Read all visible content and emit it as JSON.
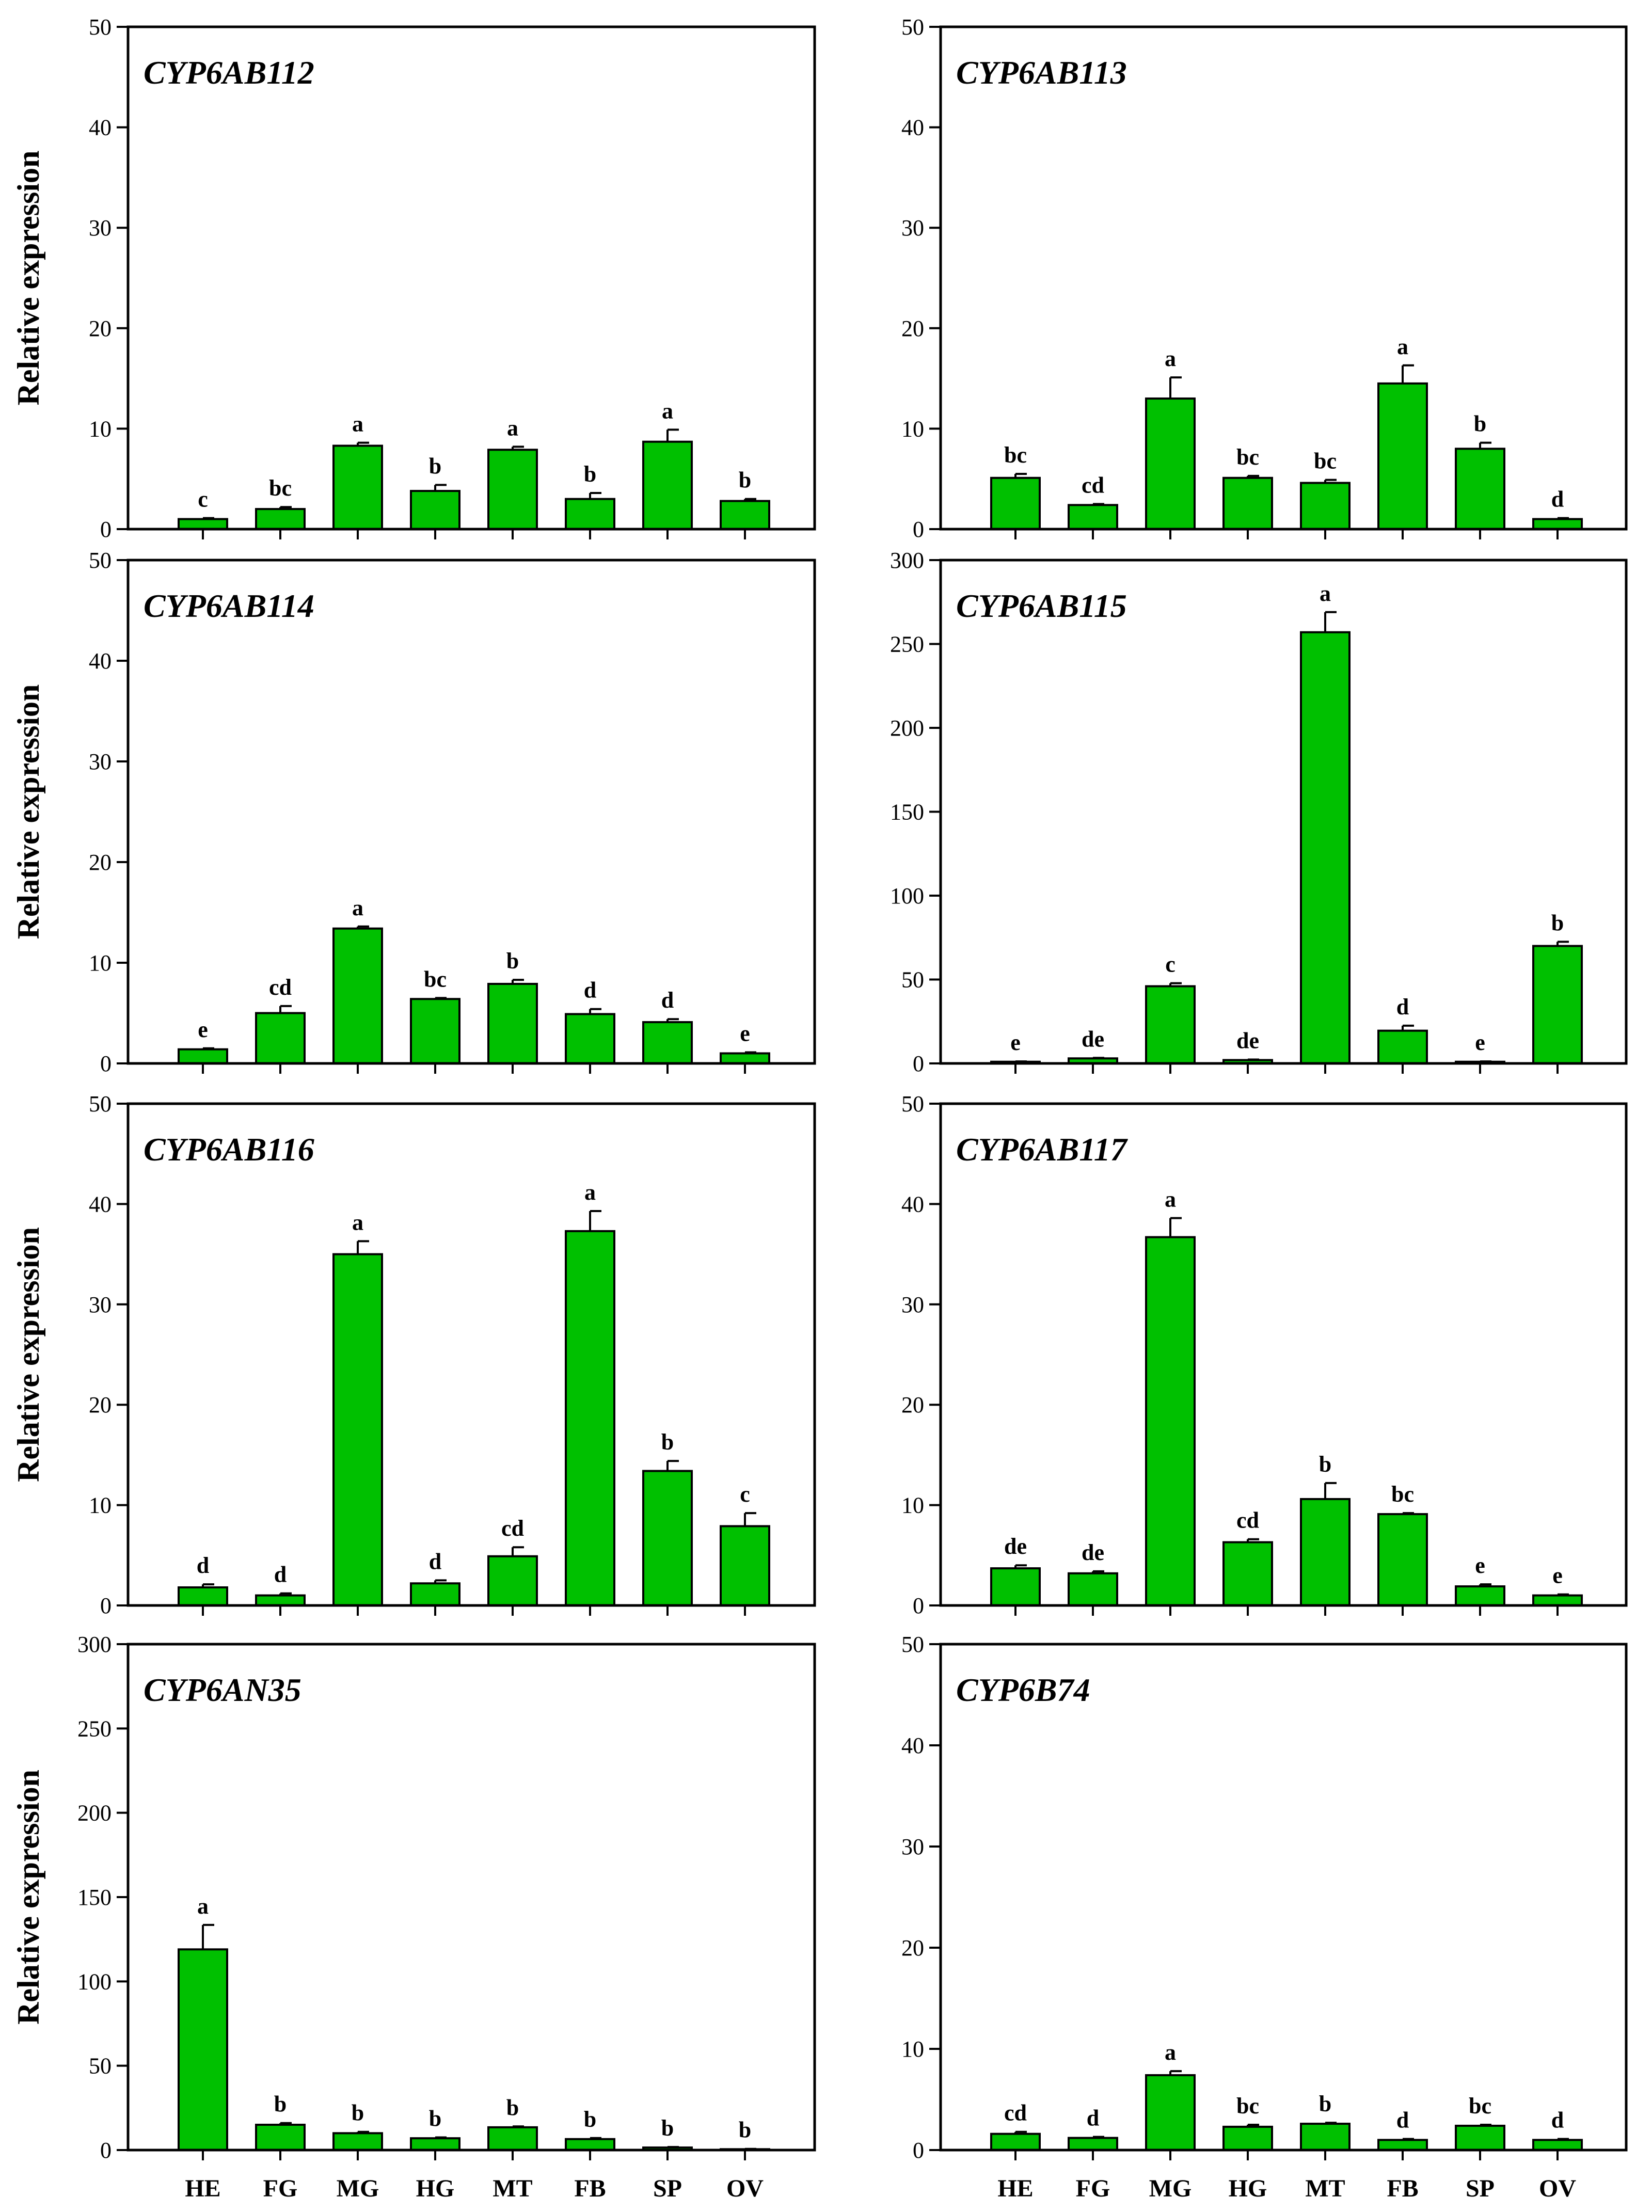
{
  "colors": {
    "bar_fill": "#00C000",
    "stroke": "#000000",
    "background": "#FFFFFF"
  },
  "chart_data": [
    {
      "type": "bar",
      "title": "CYP6AB112",
      "ylabel": "Relative expression",
      "xlabel": "",
      "ylim": [
        0,
        50
      ],
      "yticks": [
        0,
        10,
        20,
        30,
        40,
        50
      ],
      "categories": [
        "HE",
        "FG",
        "MG",
        "HG",
        "MT",
        "FB",
        "SP",
        "OV"
      ],
      "values": [
        1.0,
        2.0,
        8.3,
        3.8,
        7.9,
        3.0,
        8.7,
        2.8
      ],
      "errors": [
        0.1,
        0.2,
        0.3,
        0.6,
        0.3,
        0.6,
        1.2,
        0.2
      ],
      "letters": [
        "c",
        "bc",
        "a",
        "b",
        "a",
        "b",
        "a",
        "b"
      ]
    },
    {
      "type": "bar",
      "title": "CYP6AB113",
      "ylabel": "",
      "xlabel": "",
      "ylim": [
        0,
        50
      ],
      "yticks": [
        0,
        10,
        20,
        30,
        40,
        50
      ],
      "categories": [
        "HE",
        "FG",
        "MG",
        "HG",
        "MT",
        "FB",
        "SP",
        "OV"
      ],
      "values": [
        5.1,
        2.4,
        13.0,
        5.1,
        4.6,
        14.5,
        8.0,
        1.0
      ],
      "errors": [
        0.4,
        0.1,
        2.1,
        0.2,
        0.3,
        1.8,
        0.6,
        0.1
      ],
      "letters": [
        "bc",
        "cd",
        "a",
        "bc",
        "bc",
        "a",
        "b",
        "d"
      ]
    },
    {
      "type": "bar",
      "title": "CYP6AB114",
      "ylabel": "Relative expression",
      "xlabel": "",
      "ylim": [
        0,
        50
      ],
      "yticks": [
        0,
        10,
        20,
        30,
        40,
        50
      ],
      "categories": [
        "HE",
        "FG",
        "MG",
        "HG",
        "MT",
        "FB",
        "SP",
        "OV"
      ],
      "values": [
        1.4,
        5.0,
        13.4,
        6.4,
        7.9,
        4.9,
        4.1,
        1.0
      ],
      "errors": [
        0.1,
        0.7,
        0.2,
        0.1,
        0.4,
        0.5,
        0.3,
        0.1
      ],
      "letters": [
        "e",
        "cd",
        "a",
        "bc",
        "b",
        "d",
        "d",
        "e"
      ]
    },
    {
      "type": "bar",
      "title": "CYP6AB115",
      "ylabel": "",
      "xlabel": "",
      "ylim": [
        0,
        300
      ],
      "yticks": [
        0,
        50,
        100,
        150,
        200,
        250,
        300
      ],
      "categories": [
        "HE",
        "FG",
        "MG",
        "HG",
        "MT",
        "FB",
        "SP",
        "OV"
      ],
      "values": [
        1.0,
        3.0,
        46.0,
        2.0,
        257.0,
        19.5,
        1.0,
        70.0
      ],
      "errors": [
        0.2,
        0.3,
        1.8,
        0.3,
        12.0,
        3.0,
        0.2,
        2.5
      ],
      "letters": [
        "e",
        "de",
        "c",
        "de",
        "a",
        "d",
        "e",
        "b"
      ]
    },
    {
      "type": "bar",
      "title": "CYP6AB116",
      "ylabel": "Relative expression",
      "xlabel": "",
      "ylim": [
        0,
        50
      ],
      "yticks": [
        0,
        10,
        20,
        30,
        40,
        50
      ],
      "categories": [
        "HE",
        "FG",
        "MG",
        "HG",
        "MT",
        "FB",
        "SP",
        "OV"
      ],
      "values": [
        1.8,
        1.0,
        35.0,
        2.2,
        4.9,
        37.3,
        13.4,
        7.9
      ],
      "errors": [
        0.3,
        0.2,
        1.3,
        0.3,
        0.9,
        2.0,
        1.0,
        1.3
      ],
      "letters": [
        "d",
        "d",
        "a",
        "d",
        "cd",
        "a",
        "b",
        "c"
      ]
    },
    {
      "type": "bar",
      "title": "CYP6AB117",
      "ylabel": "",
      "xlabel": "",
      "ylim": [
        0,
        50
      ],
      "yticks": [
        0,
        10,
        20,
        30,
        40,
        50
      ],
      "categories": [
        "HE",
        "FG",
        "MG",
        "HG",
        "MT",
        "FB",
        "SP",
        "OV"
      ],
      "values": [
        3.7,
        3.2,
        36.7,
        6.3,
        10.6,
        9.1,
        1.9,
        1.0
      ],
      "errors": [
        0.3,
        0.2,
        1.9,
        0.3,
        1.6,
        0.1,
        0.2,
        0.1
      ],
      "letters": [
        "de",
        "de",
        "a",
        "cd",
        "b",
        "bc",
        "e",
        "e"
      ]
    },
    {
      "type": "bar",
      "title": "CYP6AN35",
      "ylabel": "Relative expression",
      "xlabel": "",
      "ylim": [
        0,
        300
      ],
      "yticks": [
        0,
        50,
        100,
        150,
        200,
        250,
        300
      ],
      "categories": [
        "HE",
        "FG",
        "MG",
        "HG",
        "MT",
        "FB",
        "SP",
        "OV"
      ],
      "values": [
        119.0,
        15.0,
        10.0,
        7.0,
        13.5,
        6.5,
        1.5,
        0.5
      ],
      "errors": [
        14.5,
        1.0,
        0.8,
        0.5,
        0.5,
        0.6,
        0.3,
        0.2
      ],
      "letters": [
        "a",
        "b",
        "b",
        "b",
        "b",
        "b",
        "b",
        "b"
      ]
    },
    {
      "type": "bar",
      "title": "CYP6B74",
      "ylabel": "",
      "xlabel": "",
      "ylim": [
        0,
        50
      ],
      "yticks": [
        0,
        10,
        20,
        30,
        40,
        50
      ],
      "categories": [
        "HE",
        "FG",
        "MG",
        "HG",
        "MT",
        "FB",
        "SP",
        "OV"
      ],
      "values": [
        1.6,
        1.2,
        7.4,
        2.3,
        2.6,
        1.0,
        2.4,
        1.0
      ],
      "errors": [
        0.2,
        0.1,
        0.4,
        0.2,
        0.1,
        0.1,
        0.1,
        0.1
      ],
      "letters": [
        "cd",
        "d",
        "a",
        "bc",
        "b",
        "d",
        "bc",
        "d"
      ]
    }
  ]
}
